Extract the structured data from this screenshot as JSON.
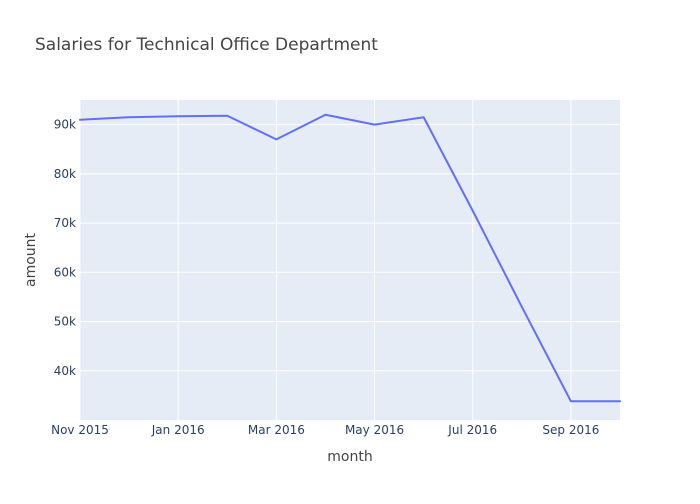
{
  "chart_data": {
    "type": "line",
    "title": "Salaries for Technical Office Department",
    "xlabel": "month",
    "ylabel": "amount",
    "x": [
      "2015-11",
      "2015-12",
      "2016-01",
      "2016-02",
      "2016-03",
      "2016-04",
      "2016-05",
      "2016-06",
      "2016-07",
      "2016-08",
      "2016-09",
      "2016-10"
    ],
    "y": [
      91000,
      91500,
      91700,
      91800,
      87000,
      92000,
      90000,
      91500,
      72500,
      53000,
      33800,
      33800
    ],
    "xlim": [
      "2015-11",
      "2016-10"
    ],
    "ylim": [
      30000,
      95000
    ],
    "x_ticks": [
      {
        "value": "2015-11",
        "label": "Nov 2015"
      },
      {
        "value": "2016-01",
        "label": "Jan 2016"
      },
      {
        "value": "2016-03",
        "label": "Mar 2016"
      },
      {
        "value": "2016-05",
        "label": "May 2016"
      },
      {
        "value": "2016-07",
        "label": "Jul 2016"
      },
      {
        "value": "2016-09",
        "label": "Sep 2016"
      }
    ],
    "y_ticks": [
      {
        "value": 40000,
        "label": "40k"
      },
      {
        "value": 50000,
        "label": "50k"
      },
      {
        "value": 60000,
        "label": "60k"
      },
      {
        "value": 70000,
        "label": "70k"
      },
      {
        "value": 80000,
        "label": "80k"
      },
      {
        "value": 90000,
        "label": "90k"
      }
    ],
    "grid": true,
    "colors": {
      "line": "#636efa",
      "plot_background": "#e5ecf6",
      "grid": "#ffffff",
      "title": "#444444",
      "text": "#444444",
      "tick_text": "#2a3f5f"
    }
  }
}
